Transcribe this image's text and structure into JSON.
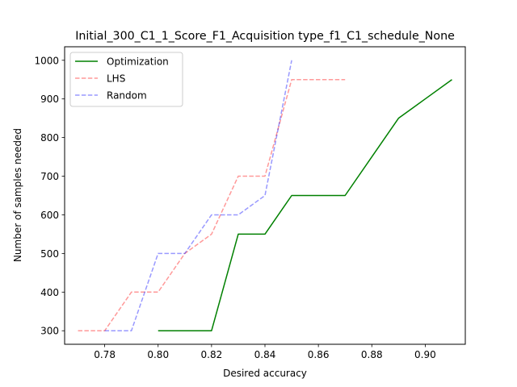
{
  "chart_data": {
    "type": "line",
    "title": "Initial_300_C1_1_Score_F1_Acquisition type_f1_C1_schedule_None",
    "xlabel": "Desired accuracy",
    "ylabel": "Number of samples needed",
    "xlim": [
      0.765,
      0.915
    ],
    "ylim": [
      265,
      1035
    ],
    "xticks": [
      0.78,
      0.8,
      0.82,
      0.84,
      0.86,
      0.88,
      0.9
    ],
    "xtick_labels": [
      "0.78",
      "0.80",
      "0.82",
      "0.84",
      "0.86",
      "0.88",
      "0.90"
    ],
    "yticks": [
      300,
      400,
      500,
      600,
      700,
      800,
      900,
      1000
    ],
    "ytick_labels": [
      "300",
      "400",
      "500",
      "600",
      "700",
      "800",
      "900",
      "1000"
    ],
    "grid": false,
    "legend_position": "top-left",
    "series": [
      {
        "name": "Optimization",
        "color": "#008000",
        "dashed": false,
        "opacity": 1,
        "x": [
          0.8,
          0.81,
          0.82,
          0.83,
          0.84,
          0.85,
          0.86,
          0.87,
          0.88,
          0.89,
          0.9,
          0.91
        ],
        "y": [
          300,
          300,
          300,
          550,
          550,
          650,
          650,
          650,
          750,
          850,
          900,
          950
        ]
      },
      {
        "name": "LHS",
        "color": "#ff0000",
        "dashed": true,
        "opacity": 0.4,
        "x": [
          0.77,
          0.78,
          0.79,
          0.8,
          0.81,
          0.82,
          0.83,
          0.84,
          0.85,
          0.86,
          0.87
        ],
        "y": [
          300,
          300,
          400,
          400,
          500,
          550,
          700,
          700,
          950,
          950,
          950
        ]
      },
      {
        "name": "Random",
        "color": "#0000ff",
        "dashed": true,
        "opacity": 0.4,
        "x": [
          0.78,
          0.79,
          0.8,
          0.81,
          0.82,
          0.83,
          0.84,
          0.85
        ],
        "y": [
          300,
          300,
          500,
          500,
          600,
          600,
          650,
          1000
        ]
      }
    ]
  }
}
